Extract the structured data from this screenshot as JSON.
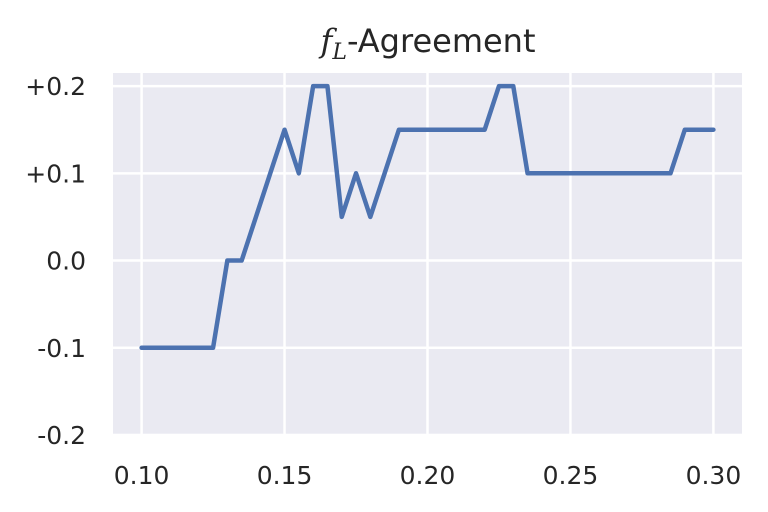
{
  "chart_data": {
    "type": "line",
    "title": {
      "math_symbol": "f",
      "math_subscript": "L",
      "text": "-Agreement"
    },
    "xlabel": "",
    "ylabel": "",
    "xlim": [
      0.09,
      0.31
    ],
    "ylim": [
      -0.2,
      0.215
    ],
    "grid": true,
    "x_ticks": [
      0.1,
      0.15,
      0.2,
      0.25,
      0.3
    ],
    "x_tick_labels": [
      "0.10",
      "0.15",
      "0.20",
      "0.25",
      "0.30"
    ],
    "y_ticks": [
      -0.2,
      -0.1,
      0.0,
      0.1,
      0.2
    ],
    "y_tick_labels": [
      "-0.2",
      "-0.1",
      "0.0",
      "+0.1",
      "+0.2"
    ],
    "series": [
      {
        "color": "#4c72b0",
        "x": [
          0.1,
          0.105,
          0.11,
          0.115,
          0.12,
          0.125,
          0.13,
          0.135,
          0.14,
          0.145,
          0.15,
          0.155,
          0.16,
          0.165,
          0.17,
          0.175,
          0.18,
          0.185,
          0.19,
          0.195,
          0.2,
          0.205,
          0.21,
          0.215,
          0.22,
          0.225,
          0.23,
          0.235,
          0.24,
          0.245,
          0.25,
          0.255,
          0.26,
          0.265,
          0.27,
          0.275,
          0.28,
          0.285,
          0.29,
          0.295,
          0.3
        ],
        "values": [
          -0.1,
          -0.1,
          -0.1,
          -0.1,
          -0.1,
          -0.1,
          0.0,
          0.0,
          0.05,
          0.1,
          0.15,
          0.1,
          0.2,
          0.2,
          0.05,
          0.1,
          0.05,
          0.1,
          0.15,
          0.15,
          0.15,
          0.15,
          0.15,
          0.15,
          0.15,
          0.2,
          0.2,
          0.1,
          0.1,
          0.1,
          0.1,
          0.1,
          0.1,
          0.1,
          0.1,
          0.1,
          0.1,
          0.1,
          0.15,
          0.15,
          0.15
        ]
      }
    ]
  },
  "colors": {
    "plot_background": "#eaeaf2",
    "grid": "#ffffff",
    "line": "#4c72b0",
    "text": "#262626"
  }
}
